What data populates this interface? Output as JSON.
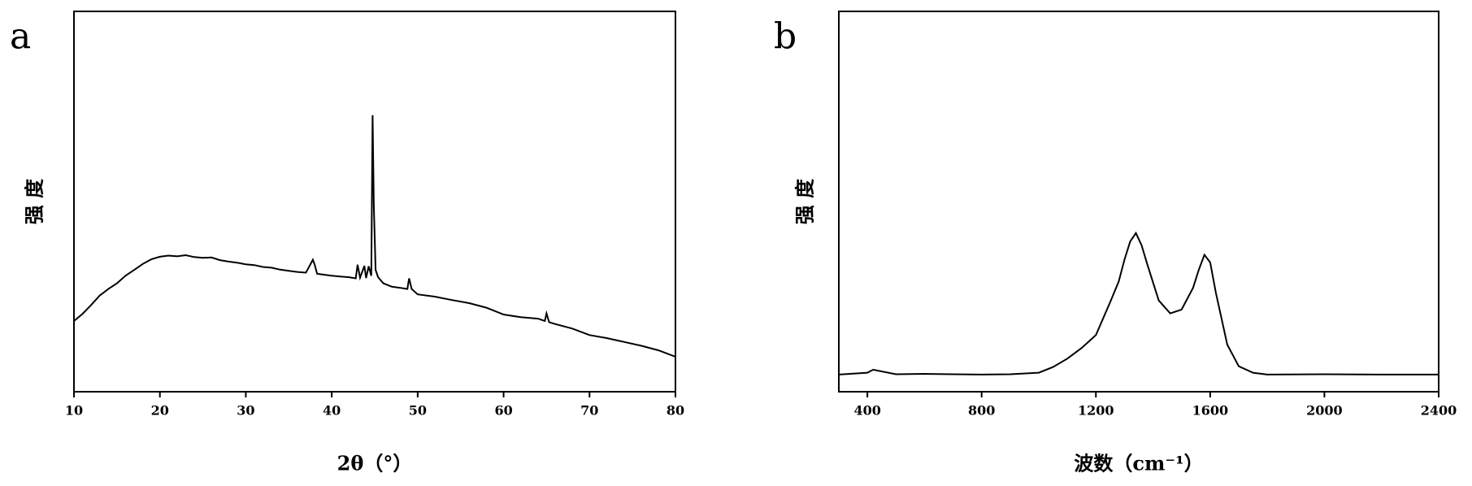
{
  "chart_data": [
    {
      "type": "line",
      "panel_label": "a",
      "ylabel": "强 度",
      "xlabel": "2θ（°）",
      "color": "#000000",
      "x": [
        10,
        11,
        12,
        13,
        14,
        15,
        16,
        17,
        18,
        19,
        20,
        21,
        22,
        23,
        24,
        25,
        26,
        27,
        28,
        29,
        30,
        31,
        32,
        33,
        34,
        35,
        36,
        37,
        37.8,
        38,
        38.3,
        39,
        40,
        41,
        42,
        42.8,
        43,
        43.3,
        43.8,
        44,
        44.3,
        44.6,
        44.75,
        44.9,
        45.1,
        45.4,
        45.7,
        46,
        47,
        48,
        48.8,
        49,
        49.3,
        50,
        52,
        54,
        56,
        58,
        60,
        62,
        64,
        64.8,
        65,
        65.3,
        66,
        68,
        70,
        72,
        74,
        76,
        78,
        80
      ],
      "values": [
        18.6,
        20.5,
        22.8,
        25.3,
        27,
        28.5,
        30.5,
        32,
        33.6,
        34.8,
        35.5,
        35.8,
        35.6,
        35.9,
        35.4,
        35.2,
        35.3,
        34.6,
        34.2,
        33.9,
        33.5,
        33.3,
        32.8,
        32.6,
        32.1,
        31.8,
        31.5,
        31.3,
        34.7,
        33.5,
        31,
        30.8,
        30.5,
        30.3,
        30.1,
        29.8,
        33.4,
        30,
        33.1,
        29.9,
        33,
        30.5,
        72.7,
        49,
        32,
        30.1,
        29.3,
        28.5,
        27.6,
        27.3,
        27,
        29.8,
        27,
        25.6,
        25,
        24.1,
        23.3,
        22.1,
        20.3,
        19.6,
        19.2,
        18.6,
        20.6,
        18.3,
        17.8,
        16.6,
        14.9,
        14.1,
        13.1,
        12.1,
        10.9,
        9.2
      ],
      "xlim": [
        10,
        80
      ],
      "xticks": [
        10,
        20,
        30,
        40,
        50,
        60,
        70,
        80
      ],
      "ylim": [
        0,
        100
      ]
    },
    {
      "type": "line",
      "panel_label": "b",
      "ylabel": "强 度",
      "xlabel": "波数（cm⁻¹）",
      "color": "#000000",
      "x": [
        300,
        400,
        420,
        500,
        600,
        700,
        800,
        900,
        1000,
        1050,
        1100,
        1150,
        1200,
        1250,
        1280,
        1300,
        1320,
        1340,
        1360,
        1380,
        1420,
        1460,
        1500,
        1540,
        1560,
        1580,
        1600,
        1620,
        1660,
        1700,
        1750,
        1800,
        2000,
        2200,
        2400
      ],
      "values": [
        4.5,
        5,
        5.8,
        4.6,
        4.7,
        4.6,
        4.5,
        4.6,
        5,
        6.5,
        8.7,
        11.5,
        14.9,
        23.6,
        29,
        34.7,
        39.5,
        41.7,
        38.5,
        33.5,
        24,
        20.6,
        21.6,
        27.3,
        32,
        36,
        34,
        26,
        12.4,
        6.7,
        5,
        4.5,
        4.6,
        4.5,
        4.5
      ],
      "xlim": [
        300,
        2400
      ],
      "xticks": [
        400,
        800,
        1200,
        1600,
        2000,
        2400
      ],
      "ylim": [
        0,
        100
      ]
    }
  ]
}
